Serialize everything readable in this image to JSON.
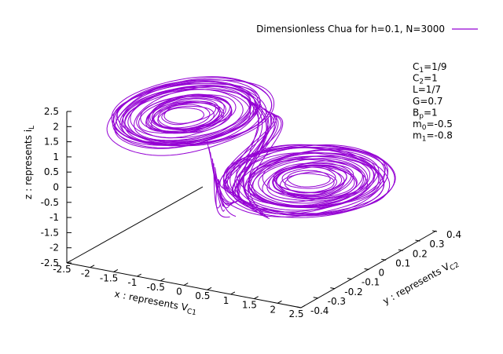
{
  "chart_data": {
    "type": "line3d",
    "title": "",
    "series": [
      {
        "name": "Dimensionless Chua for h=0.1, N=3000",
        "color": "#9400d3"
      }
    ],
    "xlabel": "x : represents V",
    "xlabel_sub": "C1",
    "ylabel": "y : represents V",
    "ylabel_sub": "C2",
    "zlabel": "z : represents i",
    "zlabel_sub": "L",
    "x_ticks": [
      "-2.5",
      "-2",
      "-1.5",
      "-1",
      "-0.5",
      "0",
      "0.5",
      "1",
      "1.5",
      "2",
      "2.5"
    ],
    "y_ticks": [
      "-0.4",
      "-0.3",
      "-0.2",
      "-0.1",
      "0",
      "0.1",
      "0.2",
      "0.3",
      "0.4"
    ],
    "z_ticks": [
      "2.5",
      "2",
      "1.5",
      "1",
      "0.5",
      "0",
      "-0.5",
      "-1",
      "-1.5",
      "-2",
      "-2.5"
    ],
    "xlim": [
      -2.5,
      2.5
    ],
    "ylim": [
      -0.4,
      0.4
    ],
    "zlim": [
      -2.5,
      2.5
    ],
    "parameters": [
      {
        "base": "C",
        "sub": "1",
        "value": "=1/9"
      },
      {
        "base": "C",
        "sub": "2",
        "value": "=1"
      },
      {
        "base": "L",
        "sub": "",
        "value": "=1/7"
      },
      {
        "base": "G",
        "sub": "",
        "value": "=0.7"
      },
      {
        "base": "B",
        "sub": "p",
        "value": "=1"
      },
      {
        "base": "m",
        "sub": "0",
        "value": "=-0.5"
      },
      {
        "base": "m",
        "sub": "1",
        "value": "=-0.8"
      }
    ],
    "legend_position": "top-right"
  }
}
